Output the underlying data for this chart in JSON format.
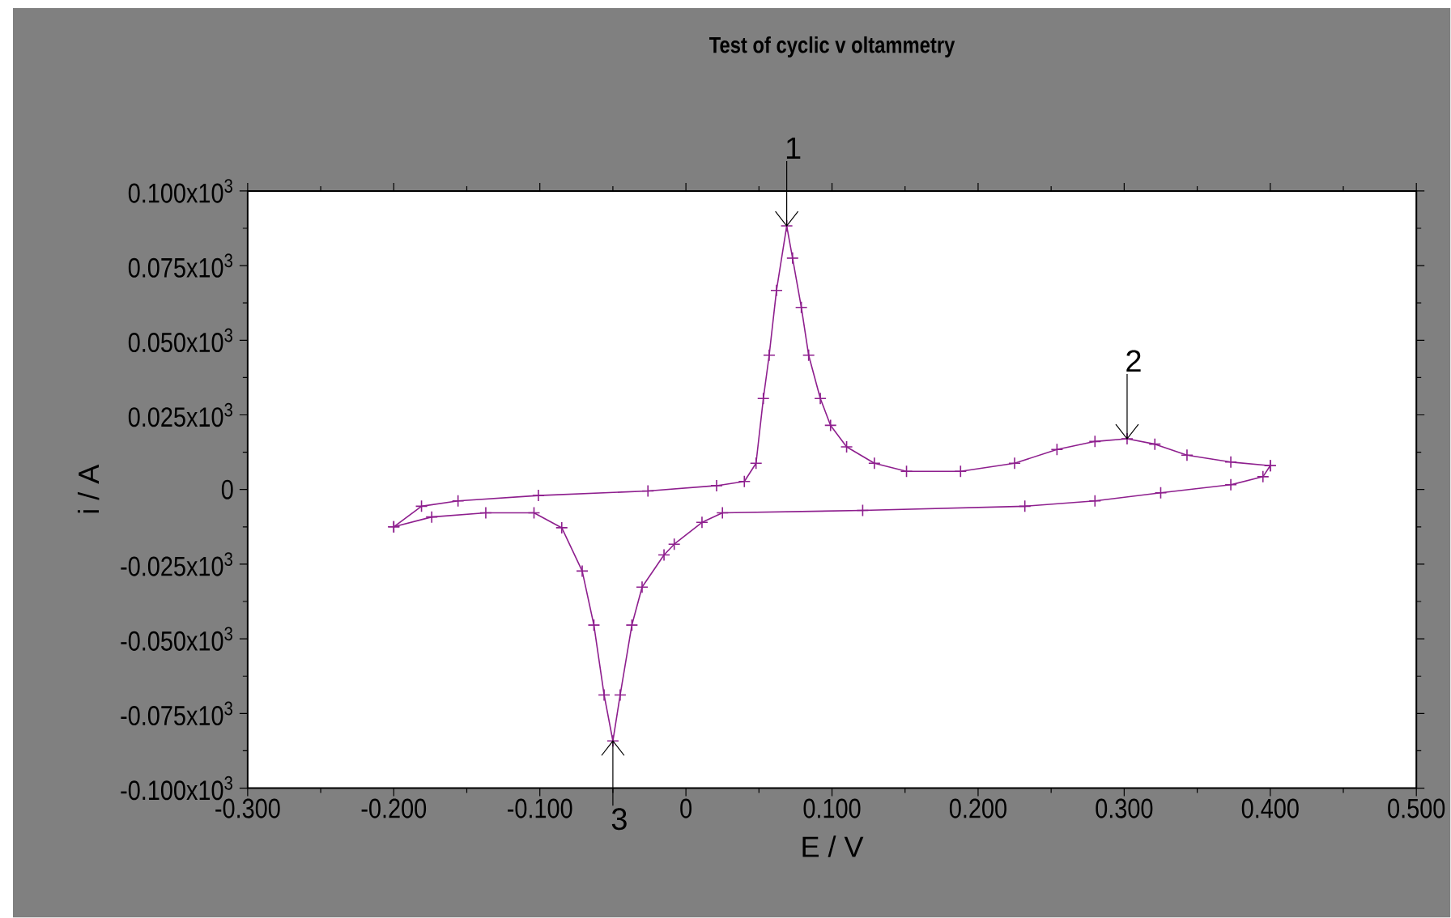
{
  "chart_data": {
    "type": "line",
    "title": "Test of cyclic v oltammetry",
    "xlabel": "E / V",
    "ylabel": "i / A",
    "xlim": [
      -0.3,
      0.5
    ],
    "xticks": [
      {
        "value": -0.3,
        "label": "-0.300"
      },
      {
        "value": -0.2,
        "label": "-0.200"
      },
      {
        "value": -0.1,
        "label": "-0.100"
      },
      0,
      {
        "value": 0.1,
        "label": "0.100"
      },
      {
        "value": 0.2,
        "label": "0.200"
      },
      {
        "value": 0.3,
        "label": "0.300"
      },
      {
        "value": 0.4,
        "label": "0.400"
      },
      {
        "value": 0.5,
        "label": "0.500"
      }
    ],
    "ylim": [
      -100,
      100
    ],
    "yticks": [
      {
        "value": 100,
        "label": "0.100x10$^{3}$"
      },
      {
        "value": 75,
        "label": "0.075x10$^{3}$"
      },
      {
        "value": 50,
        "label": "0.050x10$^{3}$"
      },
      {
        "value": 25,
        "label": "0.025x10$^{3}$"
      },
      0,
      {
        "value": -25,
        "label": "-0.025x10$^{3}$"
      },
      {
        "value": -50,
        "label": "-0.050x10$^{3}$"
      },
      {
        "value": -75,
        "label": "-0.075x10$^{3}$"
      },
      {
        "value": -100,
        "label": "-0.100x10$^{3}$"
      }
    ],
    "grid": false,
    "marker": "cross",
    "line_style": "solid",
    "series": [
      {
        "color": "#8e1f8e",
        "x": [
          -0.2,
          -0.181,
          -0.156,
          -0.101,
          -0.026,
          0.021,
          0.04,
          0.048,
          0.053,
          0.057,
          0.062,
          0.069,
          0.073,
          0.079,
          0.084,
          0.092,
          0.099,
          0.11,
          0.129,
          0.151,
          0.188,
          0.225,
          0.254,
          0.28,
          0.302,
          0.321,
          0.343,
          0.373,
          0.4
        ],
        "values": [
          -12.5,
          -5.6,
          -3.8,
          -2.0,
          -0.5,
          1.3,
          2.7,
          8.8,
          30.5,
          45.0,
          66.7,
          88.3,
          77.5,
          61.0,
          45.0,
          30.5,
          21.5,
          14.3,
          8.8,
          6.1,
          6.1,
          8.8,
          13.4,
          16.1,
          17.0,
          15.2,
          11.5,
          9.2,
          8.0
        ]
      },
      {
        "color": "#8e1f8e",
        "x": [
          0.4,
          0.395,
          0.373,
          0.325,
          0.28,
          0.232,
          0.121,
          0.025,
          0.011,
          -0.008,
          -0.015,
          -0.03,
          -0.037,
          -0.045,
          -0.05,
          -0.056,
          -0.063,
          -0.071,
          -0.085,
          -0.104,
          -0.137,
          -0.174,
          -0.2
        ],
        "values": [
          8.0,
          4.3,
          1.6,
          -1.1,
          -3.8,
          -5.6,
          -7.0,
          -7.8,
          -11.0,
          -18.3,
          -21.9,
          -32.7,
          -45.4,
          -68.8,
          -84.2,
          -68.8,
          -45.4,
          -27.3,
          -12.8,
          -7.8,
          -7.8,
          -9.2,
          -12.5
        ]
      }
    ],
    "annotations": [
      {
        "text": "1",
        "x": 0.069,
        "y": 88.3
      },
      {
        "text": "2",
        "x": 0.302,
        "y": 17.0
      },
      {
        "text": "3",
        "x": -0.05,
        "y": -84.2
      }
    ]
  }
}
